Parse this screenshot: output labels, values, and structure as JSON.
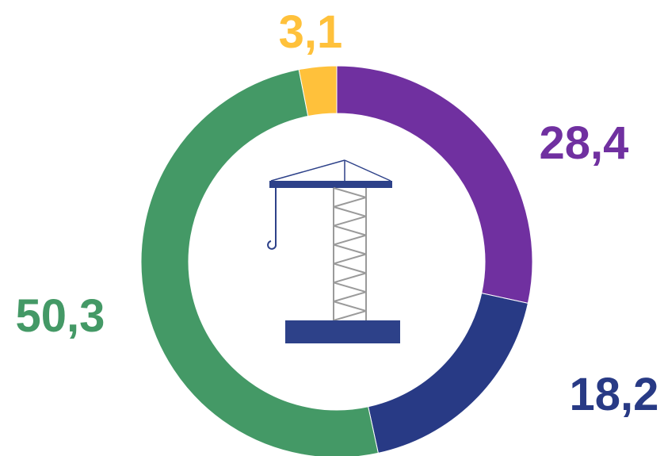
{
  "chart_data": {
    "type": "pie",
    "variant": "donut",
    "title": "",
    "slices": [
      {
        "label": "28,4",
        "value": 28.4,
        "color": "#7030a0"
      },
      {
        "label": "18,2",
        "value": 18.2,
        "color": "#283a85"
      },
      {
        "label": "50,3",
        "value": 50.3,
        "color": "#449966"
      },
      {
        "label": "3,1",
        "value": 3.1,
        "color": "#ffc13b"
      }
    ],
    "start_angle_deg": 0,
    "direction": "clockwise",
    "legend": "none",
    "center_icon": "tower-crane-icon"
  },
  "colors": {
    "crane_blue": "#2d4189",
    "crane_mast": "#9a9a9a",
    "background": "#ffffff"
  }
}
